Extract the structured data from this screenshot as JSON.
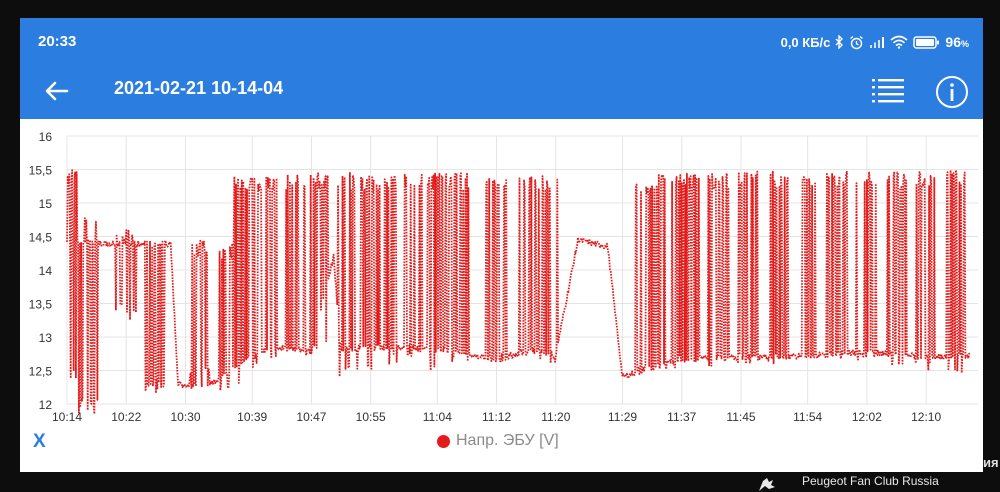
{
  "status_bar": {
    "time": "20:33",
    "net_speed": "0,0 КБ/с",
    "battery_pct": "96",
    "battery_unit": "%",
    "icons": [
      "bluetooth-icon",
      "alarm-icon",
      "signal-icon",
      "wifi-icon",
      "battery-icon"
    ]
  },
  "toolbar": {
    "title": "2021-02-21 10-14-04",
    "back_icon": "arrow-left-icon",
    "list_icon": "list-icon",
    "info_icon": "info-icon"
  },
  "x_button": "X",
  "legend_label": "Напр. ЭБУ [V]",
  "watermark": "Peugeot Fan Club Russia",
  "edge_fragment": "ия",
  "colors": {
    "appbar": "#2b7de0",
    "series": "#e31b1b",
    "grid": "#e4e4e4"
  },
  "chart_data": {
    "type": "line",
    "title": "",
    "xlabel": "",
    "ylabel": "",
    "ylim": [
      12,
      16
    ],
    "yticks": [
      "12",
      "12,5",
      "13",
      "13,5",
      "14",
      "14,5",
      "15",
      "15,5",
      "16"
    ],
    "xticks": [
      "10:14",
      "10:22",
      "10:30",
      "10:39",
      "10:47",
      "10:55",
      "11:04",
      "11:12",
      "11:20",
      "11:29",
      "11:37",
      "11:45",
      "11:54",
      "12:02",
      "12:10"
    ],
    "xlim": [
      "10:14",
      "12:17"
    ],
    "grid": true,
    "legend": "bottom-center",
    "series": [
      {
        "name": "Напр. ЭБУ [V]",
        "style": "dotted",
        "color": "#e31b1b",
        "baseline": [
          [
            "10:14",
            14.42
          ],
          [
            "10:20",
            14.4
          ],
          [
            "10:28",
            14.38
          ],
          [
            "10:29",
            12.3
          ],
          [
            "10:32",
            12.25
          ],
          [
            "10:35",
            12.4
          ],
          [
            "10:37",
            12.6
          ],
          [
            "10:39",
            12.7
          ],
          [
            "10:42",
            12.85
          ],
          [
            "10:47",
            12.8
          ],
          [
            "10:50",
            14.2
          ],
          [
            "10:51",
            12.8
          ],
          [
            "10:55",
            12.85
          ],
          [
            "11:04",
            12.82
          ],
          [
            "11:08",
            12.75
          ],
          [
            "11:12",
            12.65
          ],
          [
            "11:16",
            12.8
          ],
          [
            "11:20",
            12.75
          ],
          [
            "11:23",
            14.45
          ],
          [
            "11:27",
            14.35
          ],
          [
            "11:29",
            12.4
          ],
          [
            "11:33",
            12.55
          ],
          [
            "11:37",
            12.68
          ],
          [
            "11:45",
            12.7
          ],
          [
            "11:54",
            12.72
          ],
          [
            "12:02",
            12.78
          ],
          [
            "12:10",
            12.7
          ],
          [
            "12:16",
            12.72
          ]
        ],
        "spikes": [
          [
            "10:14",
            15.5,
            12.35
          ],
          [
            "10:17",
            12.1,
            14.7
          ],
          [
            "10:22",
            13.5,
            14.45
          ],
          [
            "10:26",
            12.4,
            14.35
          ],
          [
            "10:32",
            14.45,
            12.4
          ],
          [
            "10:36",
            14.4,
            12.2
          ],
          [
            "10:38",
            15.4,
            12.5
          ],
          [
            "10:41",
            15.4,
            12.6
          ],
          [
            "10:45",
            15.45,
            12.7
          ],
          [
            "10:48",
            15.45,
            12.8
          ],
          [
            "10:52",
            15.45,
            12.4
          ],
          [
            "10:55",
            15.4,
            12.5
          ],
          [
            "10:58",
            15.45,
            12.6
          ],
          [
            "11:01",
            15.45,
            12.7
          ],
          [
            "11:04",
            15.45,
            12.5
          ],
          [
            "11:07",
            15.45,
            12.6
          ],
          [
            "11:12",
            15.4,
            12.6
          ],
          [
            "11:16",
            15.4,
            12.7
          ],
          [
            "11:19",
            15.4,
            12.6
          ],
          [
            "11:32",
            15.35,
            12.4
          ],
          [
            "11:35",
            15.45,
            12.5
          ],
          [
            "11:38",
            15.45,
            12.55
          ],
          [
            "11:42",
            15.45,
            12.55
          ],
          [
            "11:46",
            15.47,
            12.6
          ],
          [
            "11:50",
            15.47,
            12.6
          ],
          [
            "11:54",
            15.47,
            12.6
          ],
          [
            "11:58",
            15.47,
            12.6
          ],
          [
            "12:02",
            15.47,
            12.6
          ],
          [
            "12:06",
            15.47,
            12.55
          ],
          [
            "12:10",
            15.47,
            12.5
          ],
          [
            "12:14",
            15.5,
            12.45
          ]
        ]
      }
    ]
  }
}
